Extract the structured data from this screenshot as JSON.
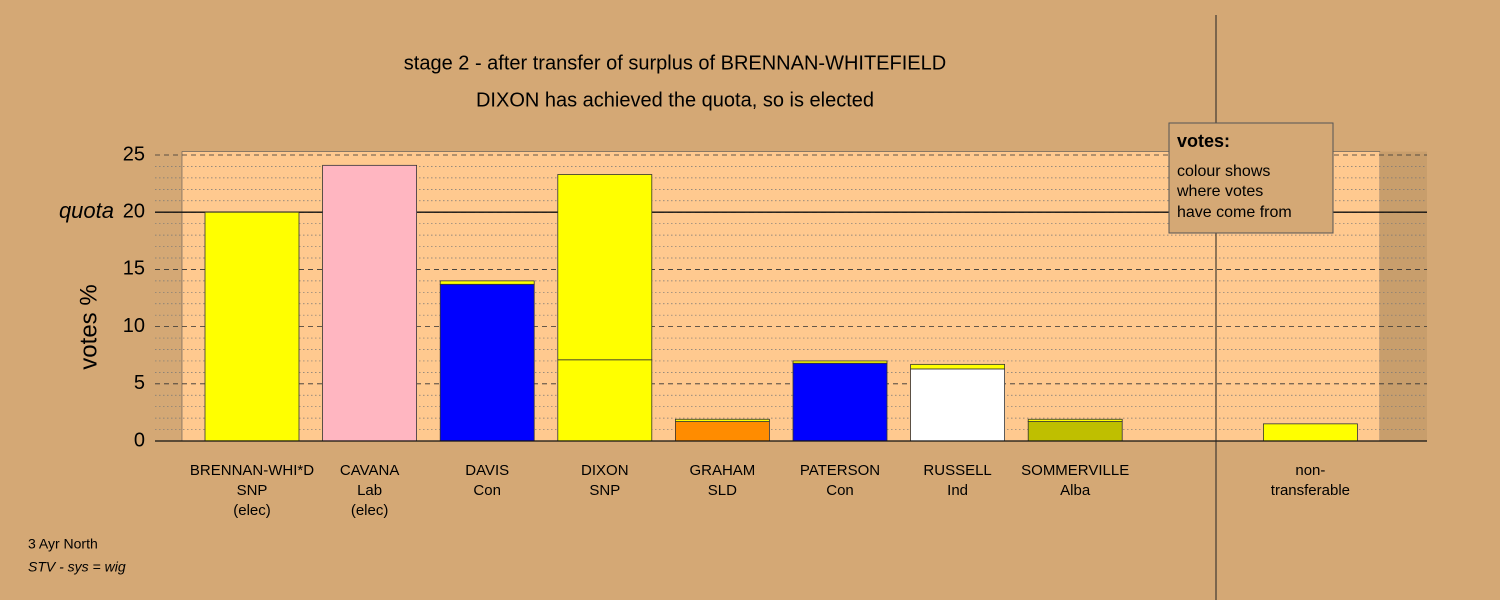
{
  "chart_data": {
    "type": "bar",
    "title": "stage 2 - after transfer of surplus of BRENNAN-WHITEFIELD",
    "subtitle": "DIXON has achieved the quota, so is elected",
    "y_label": "votes %",
    "quota_label": "quota",
    "quota": 20,
    "categories": [
      [
        "BRENNAN-WHI*D",
        "SNP",
        "(elec)"
      ],
      [
        "CAVANA",
        "Lab",
        "(elec)"
      ],
      [
        "DAVIS",
        "Con"
      ],
      [
        "DIXON",
        "SNP"
      ],
      [
        "GRAHAM",
        "SLD"
      ],
      [
        "PATERSON",
        "Con"
      ],
      [
        "RUSSELL",
        "Ind"
      ],
      [
        "SOMMERVILLE",
        "Alba"
      ],
      [
        "non-",
        "transferable"
      ]
    ],
    "series": [
      {
        "colors": [
          "#ffff00",
          "#ffb6c1",
          "#0000ff",
          "#ffff00",
          "#ff8c00",
          "#0000ff",
          "#ffffff",
          "#bfbf00",
          null
        ],
        "values": [
          20.0,
          24.1,
          13.7,
          7.1,
          1.7,
          6.8,
          6.3,
          1.7,
          null
        ]
      },
      {
        "color": "#ffff00",
        "values": [
          null,
          null,
          0.3,
          16.2,
          0.2,
          0.2,
          0.4,
          0.2,
          1.5
        ]
      }
    ],
    "ylim": [
      0,
      25.3
    ],
    "yticks": [
      0,
      5,
      10,
      15,
      20,
      25
    ],
    "legend": {
      "title": "votes:",
      "lines": [
        "colour shows",
        "where votes",
        "have come from"
      ]
    },
    "footnotes": [
      "3 Ayr North",
      "STV - sys = wig"
    ]
  }
}
